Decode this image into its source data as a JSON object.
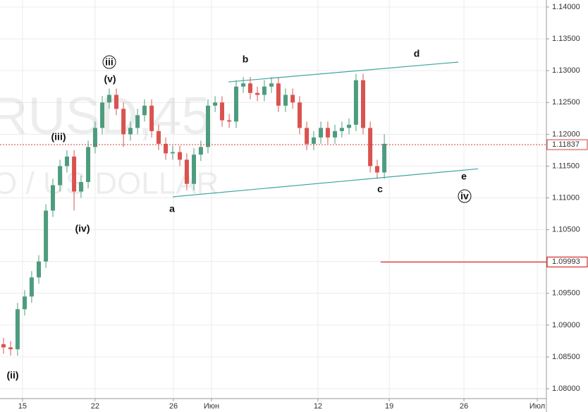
{
  "chart_data": {
    "type": "candlestick",
    "watermark": [
      "RUSD,45",
      "O / US DOLLAR"
    ],
    "annotations": [
      "(ii)",
      "(iii)",
      "iii",
      "(v)",
      "(iv)",
      "a",
      "b",
      "c",
      "d",
      "e",
      "iv"
    ],
    "up_color": "#4e9c7e",
    "down_color": "#d9534f",
    "x": [
      0.24,
      0.73,
      1.21,
      1.7,
      2.18,
      2.67,
      3.16,
      3.64,
      4.13,
      4.61,
      5.1,
      5.58,
      6.07,
      6.55,
      7.04,
      7.52,
      8.01,
      8.5,
      8.98,
      9.47,
      9.95,
      10.44,
      10.92,
      11.41,
      11.89,
      12.38,
      12.86,
      13.35,
      13.83,
      14.32,
      14.81,
      15.29,
      15.78,
      16.26,
      16.75,
      17.23,
      17.72,
      18.2,
      18.69,
      19.17,
      19.66,
      20.15,
      20.63,
      21.12,
      21.6,
      22.09,
      22.57,
      23.06,
      23.54,
      24.03,
      24.51,
      25.0,
      25.49,
      25.97,
      26.46
    ],
    "open": [
      1.087,
      1.0865,
      1.0862,
      1.0925,
      1.0945,
      1.0975,
      1.1,
      1.108,
      1.112,
      1.115,
      1.1165,
      1.111,
      1.1125,
      1.118,
      1.121,
      1.125,
      1.1262,
      1.124,
      1.12,
      1.121,
      1.123,
      1.1245,
      1.1205,
      1.1185,
      1.117,
      1.1172,
      1.116,
      1.1122,
      1.1168,
      1.118,
      1.1245,
      1.125,
      1.1222,
      1.122,
      1.1275,
      1.128,
      1.1265,
      1.1262,
      1.1275,
      1.128,
      1.1245,
      1.1262,
      1.125,
      1.121,
      1.1185,
      1.1195,
      1.121,
      1.1195,
      1.1205,
      1.121,
      1.1215,
      1.1285,
      1.121,
      1.115,
      1.114
    ],
    "high": [
      1.088,
      1.0875,
      1.0935,
      1.0955,
      1.0985,
      1.101,
      1.109,
      1.113,
      1.116,
      1.1175,
      1.1175,
      1.1135,
      1.119,
      1.122,
      1.126,
      1.1272,
      1.1272,
      1.125,
      1.122,
      1.124,
      1.1255,
      1.1255,
      1.1215,
      1.1195,
      1.1182,
      1.1182,
      1.117,
      1.1178,
      1.119,
      1.1255,
      1.126,
      1.126,
      1.1232,
      1.1285,
      1.129,
      1.129,
      1.1275,
      1.1285,
      1.129,
      1.129,
      1.1272,
      1.1272,
      1.126,
      1.122,
      1.1205,
      1.122,
      1.122,
      1.1215,
      1.122,
      1.1225,
      1.1295,
      1.1295,
      1.122,
      1.116,
      1.12
    ],
    "low": [
      1.0855,
      1.0852,
      1.0852,
      1.0915,
      1.0935,
      1.0965,
      1.099,
      1.107,
      1.111,
      1.114,
      1.108,
      1.11,
      1.1115,
      1.117,
      1.12,
      1.124,
      1.123,
      1.118,
      1.119,
      1.12,
      1.122,
      1.1195,
      1.1175,
      1.116,
      1.116,
      1.115,
      1.1112,
      1.1112,
      1.1158,
      1.117,
      1.1235,
      1.1212,
      1.121,
      1.121,
      1.1265,
      1.1255,
      1.1252,
      1.1252,
      1.1265,
      1.1235,
      1.1235,
      1.124,
      1.12,
      1.1175,
      1.1175,
      1.1185,
      1.1185,
      1.1185,
      1.1195,
      1.12,
      1.1205,
      1.12,
      1.114,
      1.113,
      1.113
    ],
    "close": [
      1.0865,
      1.0862,
      1.0925,
      1.0945,
      1.0975,
      1.1,
      1.108,
      1.112,
      1.115,
      1.1165,
      1.111,
      1.1125,
      1.118,
      1.121,
      1.125,
      1.1262,
      1.124,
      1.12,
      1.121,
      1.123,
      1.1245,
      1.1205,
      1.1185,
      1.117,
      1.1172,
      1.116,
      1.1122,
      1.1168,
      1.118,
      1.1245,
      1.125,
      1.1222,
      1.122,
      1.1275,
      1.128,
      1.1265,
      1.1262,
      1.1275,
      1.128,
      1.1245,
      1.1262,
      1.125,
      1.121,
      1.1185,
      1.1195,
      1.121,
      1.1195,
      1.1205,
      1.121,
      1.1215,
      1.1285,
      1.121,
      1.115,
      1.114,
      1.1185
    ],
    "trendlines": [
      {
        "color": "#3fa79b",
        "x": [
          15.73,
          31.55
        ],
        "y": [
          1.12824,
          1.13135
        ]
      },
      {
        "color": "#3fa79b",
        "x": [
          11.89,
          32.91
        ],
        "y": [
          1.11017,
          1.11457
        ]
      }
    ],
    "price_lines": [
      {
        "value": 1.11837,
        "label": "1.11837",
        "color": "#d04040",
        "style": "dotted",
        "x_start": 0
      },
      {
        "value": 1.09993,
        "label": "1.09993",
        "color": "#d00000",
        "style": "solid",
        "x_start": 26.21
      }
    ],
    "xlim": [
      0,
      37.62
    ],
    "xticks": [
      {
        "value": 1.55,
        "label": "15"
      },
      {
        "value": 6.55,
        "label": "22"
      },
      {
        "value": 11.94,
        "label": "26"
      },
      {
        "value": 14.56,
        "label": "Июн"
      },
      {
        "value": 21.89,
        "label": "12"
      },
      {
        "value": 26.8,
        "label": "19"
      },
      {
        "value": 31.94,
        "label": "26"
      },
      {
        "value": 36.99,
        "label": "Июл"
      }
    ],
    "ylim": [
      1.07845,
      1.14111
    ],
    "yticks": [
      {
        "value": 1.08,
        "label": "1.08000"
      },
      {
        "value": 1.085,
        "label": "1.08500"
      },
      {
        "value": 1.09,
        "label": "1.09000"
      },
      {
        "value": 1.095,
        "label": "1.09500"
      },
      {
        "value": 1.1,
        "label": "1.10000"
      },
      {
        "value": 1.105,
        "label": "1.10500"
      },
      {
        "value": 1.11,
        "label": "1.11000"
      },
      {
        "value": 1.115,
        "label": "1.11500"
      },
      {
        "value": 1.12,
        "label": "1.12000"
      },
      {
        "value": 1.125,
        "label": "1.12500"
      },
      {
        "value": 1.13,
        "label": "1.13000"
      },
      {
        "value": 1.135,
        "label": "1.13500"
      },
      {
        "value": 1.14,
        "label": "1.14000"
      }
    ],
    "grid": true
  }
}
